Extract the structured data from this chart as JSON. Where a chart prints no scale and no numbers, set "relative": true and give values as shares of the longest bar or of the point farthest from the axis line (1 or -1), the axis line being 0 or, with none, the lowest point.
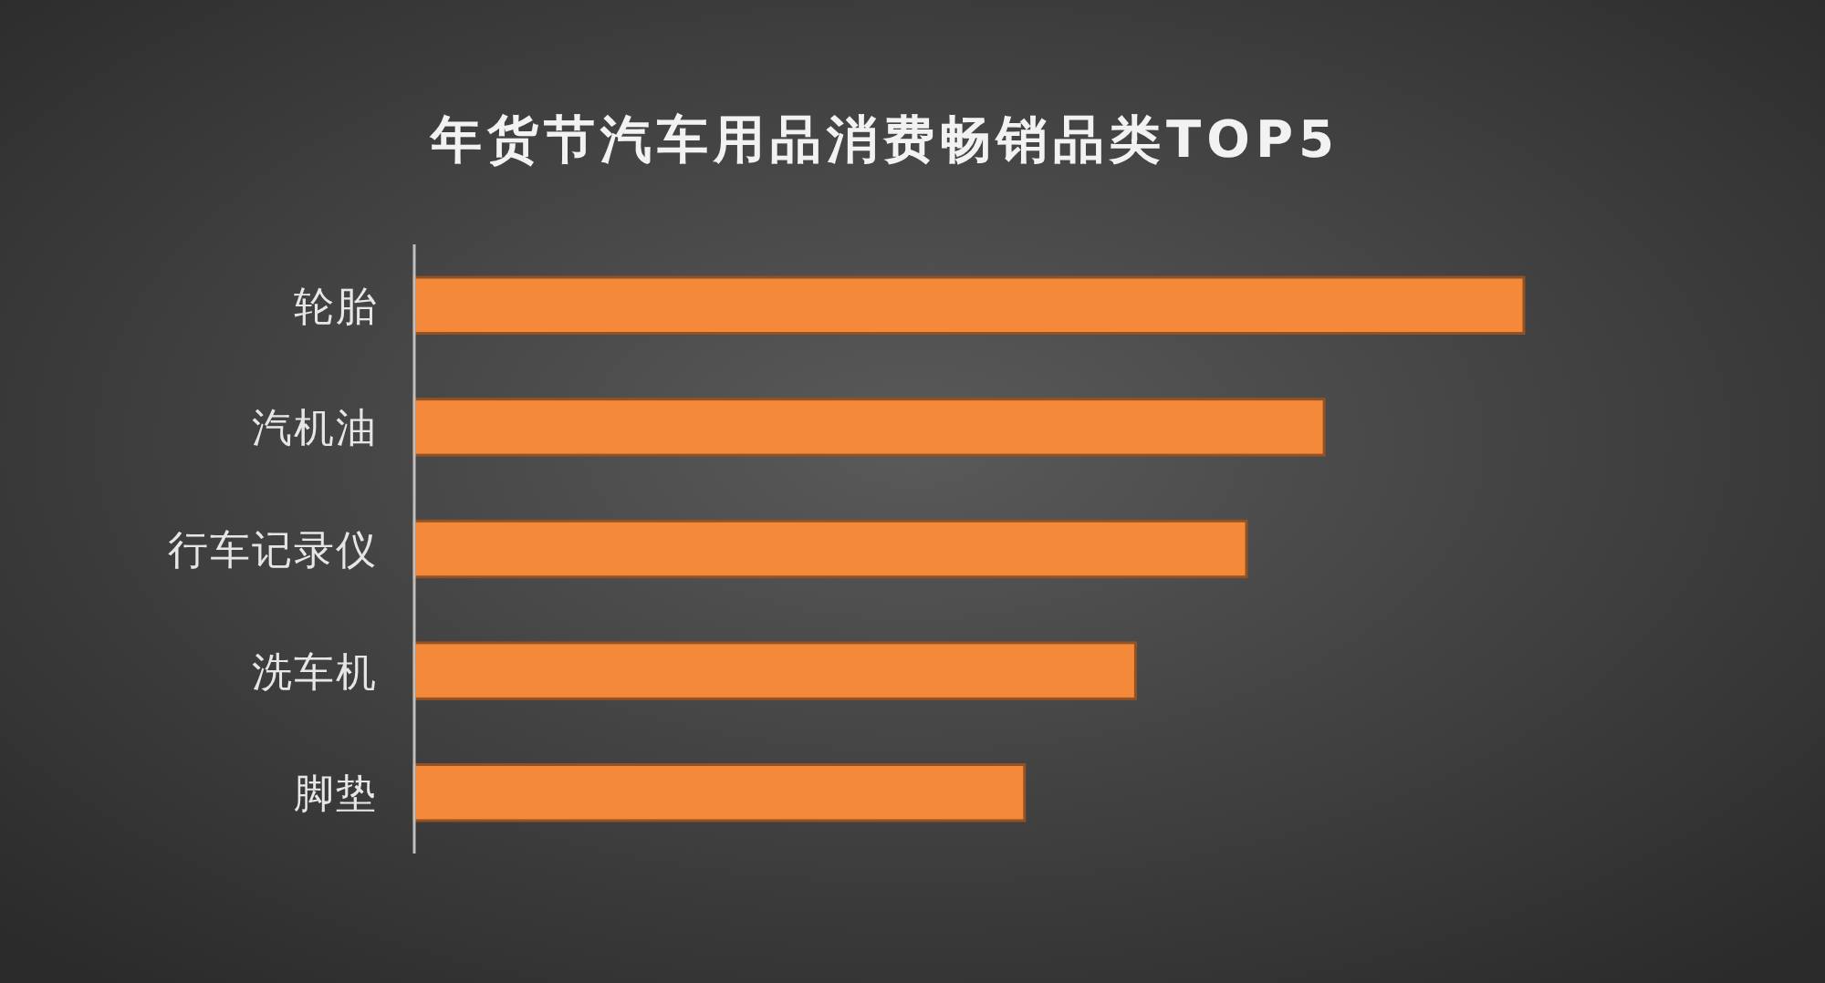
{
  "chart_data": {
    "type": "bar",
    "title": "年货节汽车用品消费畅销品类TOP5",
    "orientation": "horizontal",
    "relative": true,
    "color": "#f4893a",
    "categories": [
      "轮胎",
      "汽机油",
      "行车记录仪",
      "洗车机",
      "脚垫"
    ],
    "values": [
      1,
      0.82,
      0.75,
      0.65,
      0.55
    ]
  }
}
